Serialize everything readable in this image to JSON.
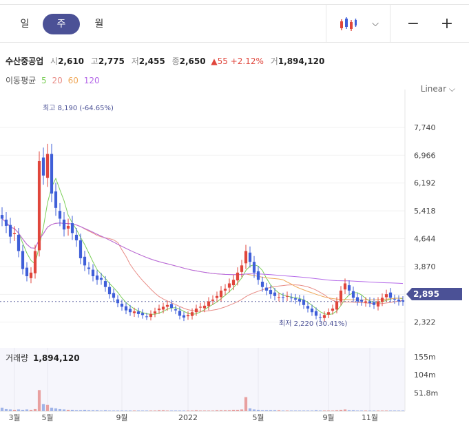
{
  "toolbar": {
    "periods": [
      "일",
      "주",
      "월"
    ],
    "active_period": "주",
    "chart_type_icon": "candlestick-icon",
    "dropdown_icon": "chevron-down-icon",
    "zoom_out_icon": "minus-icon",
    "zoom_in_icon": "plus-icon"
  },
  "stock": {
    "name": "수산중공업",
    "open_label": "시",
    "open": "2,610",
    "high_label": "고",
    "high": "2,775",
    "low_label": "저",
    "low": "2,455",
    "close_label": "종",
    "close": "2,650",
    "change": "▲55 +2.12%",
    "volume_label": "거",
    "volume": "1,894,120"
  },
  "ma": {
    "label": "이동평균",
    "p5": "5",
    "p20": "20",
    "p60": "60",
    "p120": "120"
  },
  "scale_label": "Linear ⌵",
  "colors": {
    "up": "#e0463c",
    "down": "#3f5fd8",
    "ma5": "#7ccf5a",
    "ma20": "#e88c86",
    "ma60": "#f0a85a",
    "ma120": "#b468e8",
    "accent": "#4b5196"
  },
  "chart_data": {
    "type": "candlestick",
    "price_axis_ticks": [
      "7,740",
      "6,966",
      "6,192",
      "5,418",
      "4,644",
      "3,870",
      "3,096",
      "2,322"
    ],
    "price_axis_values": [
      7740,
      6966,
      6192,
      5418,
      4644,
      3870,
      3096,
      2322
    ],
    "current_price_label": "2,895",
    "current_price": 2895,
    "max_annotation": "최고 8,190 (-64.65%)",
    "min_annotation": "최저 2,220 (30.41%)",
    "volume_title": "거래량",
    "volume_value": "1,894,120",
    "volume_axis_ticks": [
      "155m",
      "104m",
      "51.8m"
    ],
    "volume_axis_values": [
      155,
      104,
      51.8
    ],
    "x_tick_labels": [
      "3월",
      "5월",
      "9월",
      "2022",
      "5월",
      "9월",
      "11월"
    ],
    "x_tick_weeks": [
      3,
      11,
      29,
      45,
      62,
      79,
      89
    ],
    "weeks": 98,
    "ylim": [
      1800,
      8600
    ],
    "closes": [
      5200,
      5000,
      4700,
      4800,
      4300,
      3800,
      3600,
      3700,
      4300,
      6800,
      6400,
      7000,
      5900,
      5500,
      5200,
      4900,
      5000,
      4800,
      4600,
      4100,
      3900,
      3800,
      3600,
      3500,
      3500,
      3300,
      3100,
      3000,
      2850,
      2750,
      2650,
      2600,
      2620,
      2550,
      2520,
      2480,
      2550,
      2620,
      2700,
      2750,
      2800,
      2720,
      2650,
      2500,
      2450,
      2520,
      2600,
      2700,
      2750,
      2780,
      2900,
      2950,
      3050,
      3200,
      3250,
      3400,
      3500,
      3700,
      3900,
      4300,
      4000,
      3700,
      3500,
      3300,
      3200,
      3100,
      3050,
      3020,
      3000,
      3050,
      3000,
      2950,
      2900,
      2800,
      2700,
      2600,
      2500,
      2450,
      2520,
      2600,
      2700,
      2900,
      3200,
      3400,
      3200,
      3000,
      2900,
      2895,
      2900,
      2850,
      2800,
      2900,
      3000,
      3100,
      3000,
      2950,
      2900,
      2895
    ],
    "volumes": [
      10,
      6,
      5,
      4,
      5,
      4,
      5,
      4,
      6,
      60,
      20,
      18,
      10,
      8,
      6,
      5,
      4,
      4,
      3,
      3,
      4,
      3,
      3,
      3,
      2,
      3,
      2,
      2,
      2,
      2,
      2,
      2,
      2,
      2,
      2,
      2,
      2,
      2,
      3,
      3,
      2,
      2,
      2,
      2,
      2,
      2,
      2,
      3,
      2,
      2,
      2,
      2,
      3,
      3,
      3,
      3,
      4,
      4,
      5,
      40,
      8,
      5,
      4,
      3,
      3,
      3,
      3,
      3,
      2,
      2,
      2,
      2,
      2,
      2,
      2,
      2,
      3,
      2,
      2,
      2,
      2,
      3,
      4,
      5,
      3,
      3,
      2,
      2,
      2,
      2,
      2,
      2,
      2,
      2,
      2,
      2,
      2,
      2
    ]
  }
}
